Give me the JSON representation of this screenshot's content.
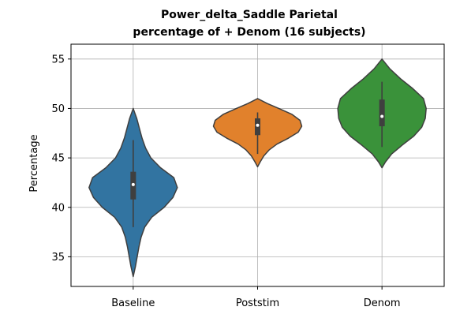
{
  "chart_data": {
    "type": "violin",
    "title_line1": "Power_delta_Saddle Parietal",
    "title_line2": "percentage of + Denom (16 subjects)",
    "xlabel": "",
    "ylabel": "Percentage",
    "ylim": [
      32,
      56.5
    ],
    "yticks": [
      35,
      40,
      45,
      50,
      55
    ],
    "grid": true,
    "categories": [
      "Baseline",
      "Poststim",
      "Denom"
    ],
    "violins": [
      {
        "category": "Baseline",
        "color": "#3274a1",
        "min": 33.0,
        "max": 50.0,
        "q1": 40.8,
        "median": 42.3,
        "q3": 43.6,
        "whisker_low": 38.0,
        "whisker_high": 46.8,
        "density": [
          [
            33.0,
            0.0
          ],
          [
            34.0,
            0.05
          ],
          [
            35.0,
            0.09
          ],
          [
            36.0,
            0.13
          ],
          [
            37.0,
            0.18
          ],
          [
            38.0,
            0.26
          ],
          [
            39.0,
            0.42
          ],
          [
            40.0,
            0.7
          ],
          [
            41.0,
            0.9
          ],
          [
            42.0,
            1.0
          ],
          [
            43.0,
            0.92
          ],
          [
            44.0,
            0.62
          ],
          [
            45.0,
            0.4
          ],
          [
            46.0,
            0.28
          ],
          [
            47.0,
            0.2
          ],
          [
            48.0,
            0.14
          ],
          [
            49.0,
            0.08
          ],
          [
            50.0,
            0.0
          ]
        ]
      },
      {
        "category": "Poststim",
        "color": "#e1812c",
        "min": 44.1,
        "max": 51.0,
        "q1": 47.3,
        "median": 48.3,
        "q3": 49.0,
        "whisker_low": 45.4,
        "whisker_high": 49.6,
        "density": [
          [
            44.1,
            0.0
          ],
          [
            44.6,
            0.06
          ],
          [
            45.2,
            0.14
          ],
          [
            45.8,
            0.26
          ],
          [
            46.4,
            0.44
          ],
          [
            47.0,
            0.7
          ],
          [
            47.6,
            0.92
          ],
          [
            48.2,
            1.0
          ],
          [
            48.8,
            0.96
          ],
          [
            49.4,
            0.78
          ],
          [
            50.0,
            0.48
          ],
          [
            50.5,
            0.22
          ],
          [
            51.0,
            0.0
          ]
        ]
      },
      {
        "category": "Denom",
        "color": "#3a923a",
        "min": 44.0,
        "max": 55.0,
        "q1": 48.2,
        "median": 49.2,
        "q3": 50.9,
        "whisker_low": 46.1,
        "whisker_high": 52.7,
        "density": [
          [
            44.0,
            0.0
          ],
          [
            44.6,
            0.08
          ],
          [
            45.4,
            0.22
          ],
          [
            46.3,
            0.46
          ],
          [
            47.2,
            0.72
          ],
          [
            48.1,
            0.9
          ],
          [
            49.0,
            0.98
          ],
          [
            50.0,
            1.0
          ],
          [
            51.0,
            0.94
          ],
          [
            52.0,
            0.7
          ],
          [
            53.0,
            0.42
          ],
          [
            54.0,
            0.18
          ],
          [
            55.0,
            0.0
          ]
        ]
      }
    ]
  }
}
